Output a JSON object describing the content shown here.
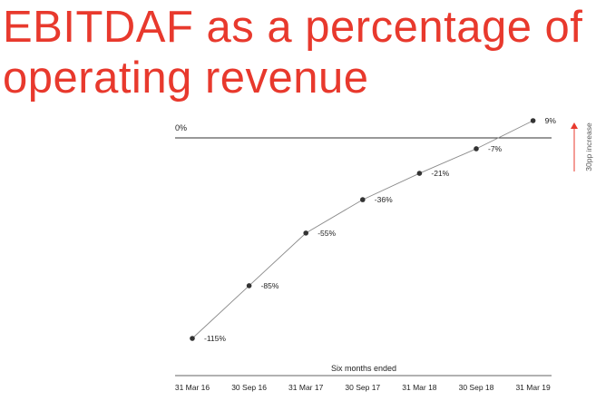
{
  "title_lines": [
    "EBITDAF as a percentage of",
    "operating revenue"
  ],
  "colors": {
    "accent": "#e8392d",
    "line": "#8a8a8a",
    "point": "#333333",
    "axis": "#333333"
  },
  "chart_data": {
    "type": "line",
    "title": "EBITDAF as a percentage of operating revenue",
    "xlabel": "Six months ended",
    "ylabel": "",
    "categories": [
      "31 Mar 16",
      "30 Sep 16",
      "31 Mar 17",
      "30 Sep 17",
      "31 Mar 18",
      "30 Sep 18",
      "31 Mar 19"
    ],
    "series": [
      {
        "name": "EBITDAF %",
        "values": [
          -115,
          -85,
          -55,
          -36,
          -21,
          -7,
          9
        ],
        "labels": [
          "-115%",
          "-85%",
          "-55%",
          "-36%",
          "-21%",
          "-7%",
          "9%"
        ]
      }
    ],
    "reference_line": {
      "value": 0,
      "label": "0%"
    },
    "annotation": {
      "text": "30pp increase",
      "direction": "up"
    },
    "ylim": [
      -124,
      10
    ]
  }
}
